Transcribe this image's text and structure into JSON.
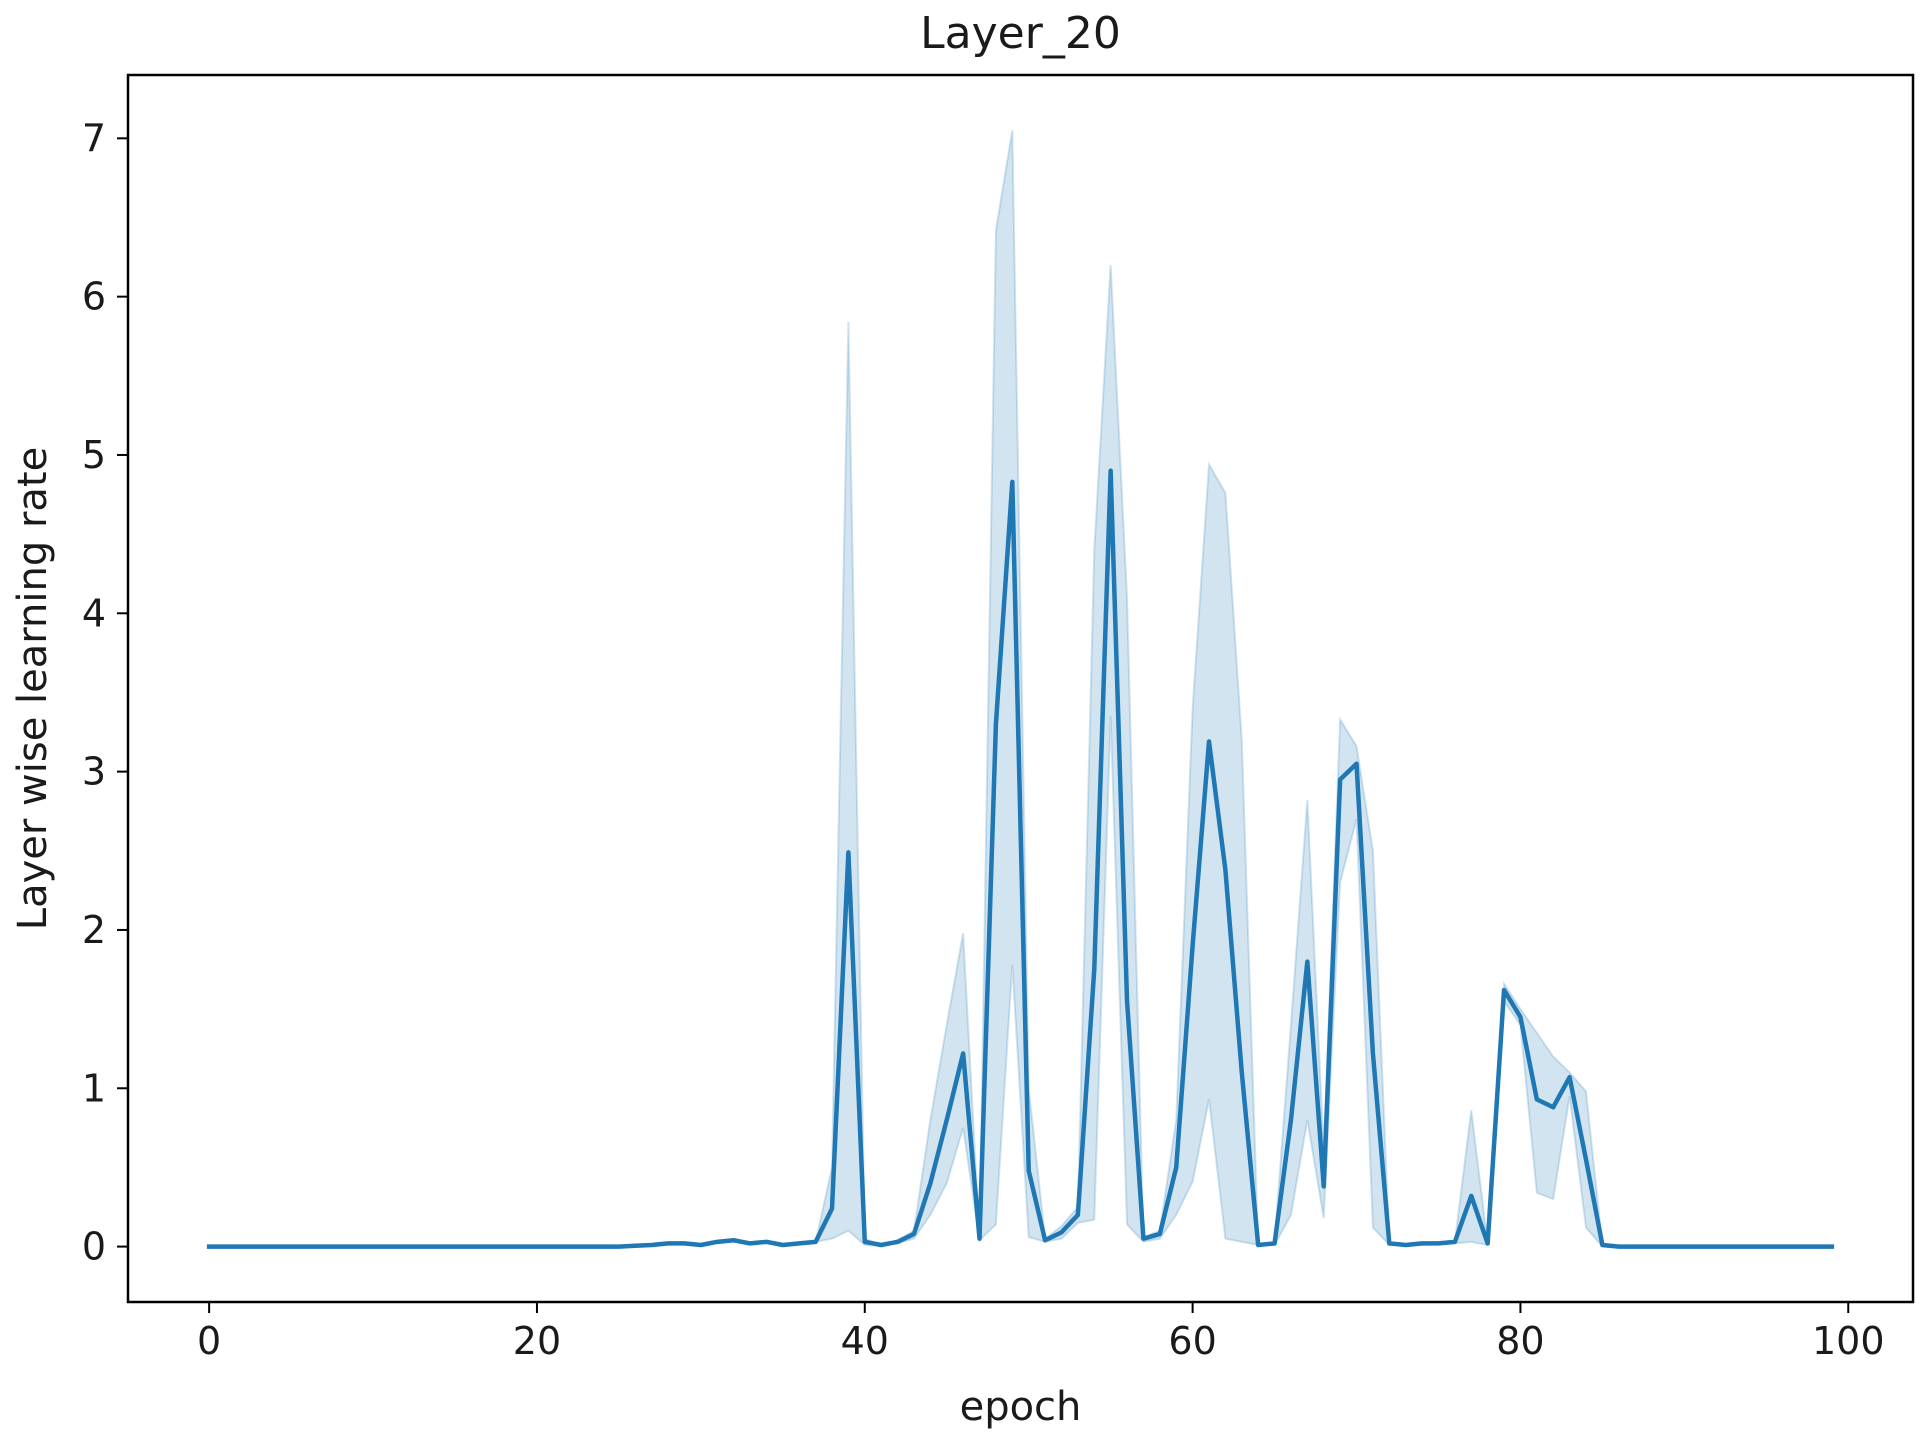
{
  "chart_data": {
    "type": "line",
    "title": "Layer_20",
    "xlabel": "epoch",
    "ylabel": "Layer wise learning rate",
    "xlim": [
      -4.95,
      103.95
    ],
    "ylim": [
      -0.35,
      7.4
    ],
    "xticks": [
      0,
      20,
      40,
      60,
      80,
      100
    ],
    "yticks": [
      0,
      1,
      2,
      3,
      4,
      5,
      6,
      7
    ],
    "grid": false,
    "legend": "none",
    "series": [
      {
        "color": "#1f77b4",
        "band_color": "#1f77b4",
        "x": [
          0,
          1,
          2,
          3,
          4,
          5,
          6,
          7,
          8,
          9,
          10,
          11,
          12,
          13,
          14,
          15,
          16,
          17,
          18,
          19,
          20,
          21,
          22,
          23,
          24,
          25,
          26,
          27,
          28,
          29,
          30,
          31,
          32,
          33,
          34,
          35,
          36,
          37,
          38,
          39,
          40,
          41,
          42,
          43,
          44,
          45,
          46,
          47,
          48,
          49,
          50,
          51,
          52,
          53,
          54,
          55,
          56,
          57,
          58,
          59,
          60,
          61,
          62,
          63,
          64,
          65,
          66,
          67,
          68,
          69,
          70,
          71,
          72,
          73,
          74,
          75,
          76,
          77,
          78,
          79,
          80,
          81,
          82,
          83,
          84,
          85,
          86,
          87,
          88,
          89,
          90,
          91,
          92,
          93,
          94,
          95,
          96,
          97,
          98,
          99
        ],
        "y": [
          0,
          0,
          0,
          0,
          0,
          0,
          0,
          0,
          0,
          0,
          0,
          0,
          0,
          0,
          0,
          0,
          0,
          0,
          0,
          0,
          0,
          0,
          0,
          0,
          0,
          0,
          0.005,
          0.01,
          0.02,
          0.02,
          0.01,
          0.03,
          0.04,
          0.02,
          0.03,
          0.01,
          0.02,
          0.03,
          0.24,
          2.49,
          0.03,
          0.01,
          0.03,
          0.08,
          0.4,
          0.8,
          1.22,
          0.05,
          3.3,
          4.83,
          0.48,
          0.04,
          0.09,
          0.2,
          1.75,
          4.9,
          1.55,
          0.05,
          0.08,
          0.5,
          1.9,
          3.19,
          2.38,
          1.1,
          0.01,
          0.02,
          0.8,
          1.8,
          0.38,
          2.95,
          3.05,
          1.22,
          0.02,
          0.01,
          0.02,
          0.02,
          0.03,
          0.32,
          0.02,
          1.62,
          1.45,
          0.93,
          0.88,
          1.07,
          0.55,
          0.01,
          0,
          0,
          0,
          0,
          0,
          0,
          0,
          0,
          0,
          0,
          0,
          0,
          0,
          0
        ],
        "upper": [
          0,
          0,
          0,
          0,
          0,
          0,
          0,
          0,
          0,
          0,
          0,
          0,
          0,
          0,
          0,
          0,
          0,
          0,
          0,
          0,
          0,
          0,
          0,
          0,
          0,
          0,
          0.005,
          0.01,
          0.02,
          0.02,
          0.01,
          0.03,
          0.04,
          0.02,
          0.03,
          0.01,
          0.02,
          0.03,
          0.5,
          5.84,
          0.05,
          0.01,
          0.04,
          0.1,
          0.8,
          1.4,
          1.98,
          0.05,
          6.42,
          7.05,
          1.0,
          0.05,
          0.13,
          0.25,
          4.4,
          6.2,
          4.1,
          0.06,
          0.1,
          0.8,
          3.4,
          4.94,
          4.76,
          3.2,
          0.01,
          0.03,
          1.4,
          2.82,
          0.6,
          3.33,
          3.16,
          2.5,
          0.03,
          0.01,
          0.02,
          0.02,
          0.03,
          0.86,
          0.02,
          1.66,
          1.5,
          1.35,
          1.2,
          1.1,
          0.98,
          0.01,
          0,
          0,
          0,
          0,
          0,
          0,
          0,
          0,
          0,
          0,
          0,
          0,
          0,
          0
        ],
        "lower": [
          0,
          0,
          0,
          0,
          0,
          0,
          0,
          0,
          0,
          0,
          0,
          0,
          0,
          0,
          0,
          0,
          0,
          0,
          0,
          0,
          0,
          0,
          0,
          0,
          0,
          0,
          0.005,
          0.01,
          0.02,
          0.02,
          0.01,
          0.03,
          0.04,
          0.02,
          0.03,
          0.01,
          0.02,
          0.03,
          0.05,
          0.1,
          0.01,
          0.005,
          0.02,
          0.05,
          0.2,
          0.4,
          0.75,
          0.04,
          0.14,
          1.78,
          0.06,
          0.03,
          0.05,
          0.15,
          0.17,
          3.35,
          0.14,
          0.03,
          0.05,
          0.2,
          0.41,
          0.93,
          0.05,
          0.03,
          0.01,
          0.01,
          0.2,
          0.8,
          0.18,
          2.3,
          2.7,
          0.12,
          0.01,
          0.01,
          0.01,
          0.02,
          0.02,
          0.03,
          0.01,
          1.55,
          1.4,
          0.34,
          0.3,
          0.95,
          0.12,
          0,
          0,
          0,
          0,
          0,
          0,
          0,
          0,
          0,
          0,
          0,
          0,
          0,
          0,
          0
        ]
      }
    ]
  }
}
